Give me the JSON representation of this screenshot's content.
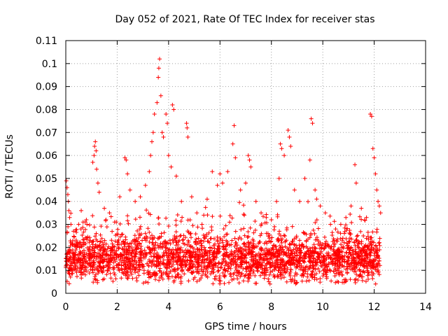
{
  "chart_data": {
    "type": "scatter",
    "title": "Day 052 of 2021, Rate Of TEC Index for receiver stas",
    "xlabel": "GPS time / hours",
    "ylabel": "ROTI / TECUs",
    "xlim": [
      0,
      14
    ],
    "ylim": [
      0,
      0.11
    ],
    "xticks": [
      0,
      2,
      4,
      6,
      8,
      10,
      12,
      14
    ],
    "xtick_labels": [
      "0",
      "2",
      "4",
      "6",
      "8",
      "10",
      "12",
      "14"
    ],
    "yticks": [
      0,
      0.01,
      0.02,
      0.03,
      0.04,
      0.05,
      0.06,
      0.07,
      0.08,
      0.09,
      0.1,
      0.11
    ],
    "ytick_labels": [
      "0",
      "0.01",
      "0.02",
      "0.03",
      "0.04",
      "0.05",
      "0.06",
      "0.07",
      "0.08",
      "0.09",
      "0.1",
      "0.11"
    ],
    "grid": true,
    "marker": "+",
    "series_color": "#ff0000",
    "data_x_range": [
      0.0,
      12.25
    ],
    "series": [
      {
        "name": "ROTI",
        "points": [
          [
            0.02,
            0.049
          ],
          [
            0.05,
            0.046
          ],
          [
            0.08,
            0.043
          ],
          [
            0.1,
            0.04
          ],
          [
            0.12,
            0.036
          ],
          [
            0.15,
            0.033
          ],
          [
            0.2,
            0.03
          ],
          [
            0.3,
            0.027
          ],
          [
            0.5,
            0.03
          ],
          [
            0.6,
            0.036
          ],
          [
            0.8,
            0.032
          ],
          [
            1.05,
            0.057
          ],
          [
            1.1,
            0.06
          ],
          [
            1.12,
            0.064
          ],
          [
            1.15,
            0.066
          ],
          [
            1.18,
            0.062
          ],
          [
            1.2,
            0.054
          ],
          [
            1.25,
            0.048
          ],
          [
            1.3,
            0.044
          ],
          [
            1.5,
            0.037
          ],
          [
            1.7,
            0.035
          ],
          [
            1.9,
            0.031
          ],
          [
            2.1,
            0.042
          ],
          [
            2.3,
            0.059
          ],
          [
            2.35,
            0.058
          ],
          [
            2.4,
            0.052
          ],
          [
            2.5,
            0.045
          ],
          [
            2.7,
            0.04
          ],
          [
            2.9,
            0.042
          ],
          [
            3.1,
            0.047
          ],
          [
            3.25,
            0.053
          ],
          [
            3.3,
            0.06
          ],
          [
            3.35,
            0.066
          ],
          [
            3.4,
            0.07
          ],
          [
            3.45,
            0.078
          ],
          [
            3.55,
            0.083
          ],
          [
            3.6,
            0.094
          ],
          [
            3.62,
            0.098
          ],
          [
            3.65,
            0.102
          ],
          [
            3.7,
            0.086
          ],
          [
            3.75,
            0.07
          ],
          [
            3.8,
            0.068
          ],
          [
            3.9,
            0.078
          ],
          [
            3.95,
            0.074
          ],
          [
            4.0,
            0.06
          ],
          [
            4.1,
            0.055
          ],
          [
            4.15,
            0.082
          ],
          [
            4.2,
            0.08
          ],
          [
            4.3,
            0.051
          ],
          [
            4.5,
            0.04
          ],
          [
            4.7,
            0.074
          ],
          [
            4.72,
            0.072
          ],
          [
            4.75,
            0.068
          ],
          [
            4.9,
            0.042
          ],
          [
            5.1,
            0.035
          ],
          [
            5.3,
            0.03
          ],
          [
            5.5,
            0.041
          ],
          [
            5.7,
            0.053
          ],
          [
            5.9,
            0.047
          ],
          [
            6.0,
            0.052
          ],
          [
            6.1,
            0.048
          ],
          [
            6.3,
            0.053
          ],
          [
            6.5,
            0.065
          ],
          [
            6.55,
            0.073
          ],
          [
            6.6,
            0.059
          ],
          [
            6.8,
            0.045
          ],
          [
            7.0,
            0.048
          ],
          [
            7.1,
            0.06
          ],
          [
            7.15,
            0.058
          ],
          [
            7.2,
            0.055
          ],
          [
            7.4,
            0.04
          ],
          [
            7.6,
            0.035
          ],
          [
            7.8,
            0.033
          ],
          [
            8.0,
            0.032
          ],
          [
            8.2,
            0.04
          ],
          [
            8.3,
            0.05
          ],
          [
            8.35,
            0.065
          ],
          [
            8.4,
            0.063
          ],
          [
            8.5,
            0.06
          ],
          [
            8.65,
            0.071
          ],
          [
            8.7,
            0.068
          ],
          [
            8.75,
            0.064
          ],
          [
            8.9,
            0.045
          ],
          [
            9.1,
            0.04
          ],
          [
            9.3,
            0.05
          ],
          [
            9.5,
            0.058
          ],
          [
            9.55,
            0.076
          ],
          [
            9.6,
            0.074
          ],
          [
            9.7,
            0.045
          ],
          [
            9.9,
            0.038
          ],
          [
            10.1,
            0.035
          ],
          [
            10.3,
            0.03
          ],
          [
            10.5,
            0.028
          ],
          [
            10.7,
            0.03
          ],
          [
            10.9,
            0.033
          ],
          [
            11.1,
            0.038
          ],
          [
            11.25,
            0.056
          ],
          [
            11.3,
            0.048
          ],
          [
            11.5,
            0.037
          ],
          [
            11.7,
            0.033
          ],
          [
            11.85,
            0.078
          ],
          [
            11.9,
            0.077
          ],
          [
            11.95,
            0.063
          ],
          [
            12.0,
            0.059
          ],
          [
            12.05,
            0.052
          ],
          [
            12.1,
            0.045
          ],
          [
            12.15,
            0.04
          ],
          [
            12.2,
            0.038
          ],
          [
            12.25,
            0.035
          ]
        ]
      }
    ],
    "dense_band": {
      "x_start": 0.0,
      "x_end": 12.25,
      "y_center": 0.015,
      "y_spread": 0.006,
      "y_min": 0.004,
      "point_count": 2600
    }
  }
}
